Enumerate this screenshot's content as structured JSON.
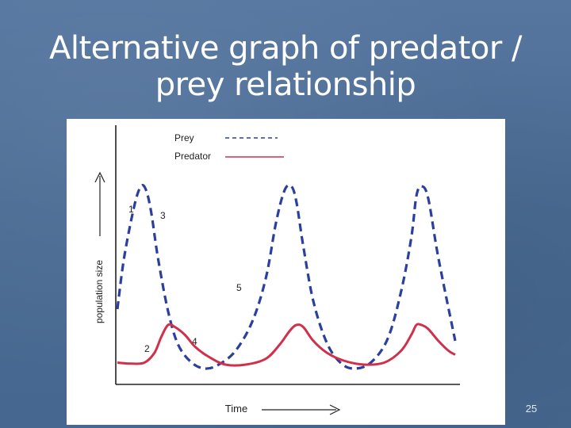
{
  "slide": {
    "title_line1": "Alternative graph of predator /",
    "title_line2": "prey relationship",
    "page_number": "25"
  },
  "chart_data": {
    "type": "line",
    "title": "",
    "xlabel": "Time",
    "ylabel": "population size",
    "ylim": [
      0,
      100
    ],
    "legend": {
      "placement": "top-left"
    },
    "grid": false,
    "series": [
      {
        "name": "Prey",
        "style": "dashed",
        "color": "#2a3f9e",
        "x": [
          0,
          2,
          5,
          7,
          8.5,
          10,
          12,
          15,
          18,
          22,
          26,
          30,
          35,
          40,
          44,
          47,
          49.5,
          51.5,
          53,
          55,
          58,
          62,
          66,
          70,
          75,
          80,
          84,
          87,
          88.5,
          90,
          92,
          95,
          100
        ],
        "values": [
          36,
          62,
          88,
          98,
          96,
          85,
          62,
          35,
          18,
          9,
          6,
          8,
          15,
          30,
          52,
          80,
          96,
          98,
          90,
          68,
          40,
          19,
          9,
          6,
          9,
          21,
          45,
          72,
          93,
          98,
          92,
          62,
          20
        ]
      },
      {
        "name": "Predator",
        "style": "solid",
        "color": "#d0304a",
        "x": [
          0,
          4,
          8,
          11,
          13,
          15,
          17,
          20,
          23,
          27,
          32,
          38,
          44,
          48,
          51,
          53,
          55,
          58,
          62,
          67,
          73,
          79,
          84,
          87,
          88.5,
          90,
          92,
          95,
          98,
          100
        ],
        "values": [
          9,
          8.5,
          9,
          14,
          22,
          28,
          27,
          23,
          17,
          12,
          8,
          8,
          11,
          18,
          25,
          28,
          27,
          20,
          14,
          10,
          8,
          9,
          15,
          23,
          28,
          28,
          26,
          20,
          15,
          13
        ]
      }
    ],
    "annotations": [
      "1",
      "2",
      "3",
      "4",
      "5"
    ]
  }
}
